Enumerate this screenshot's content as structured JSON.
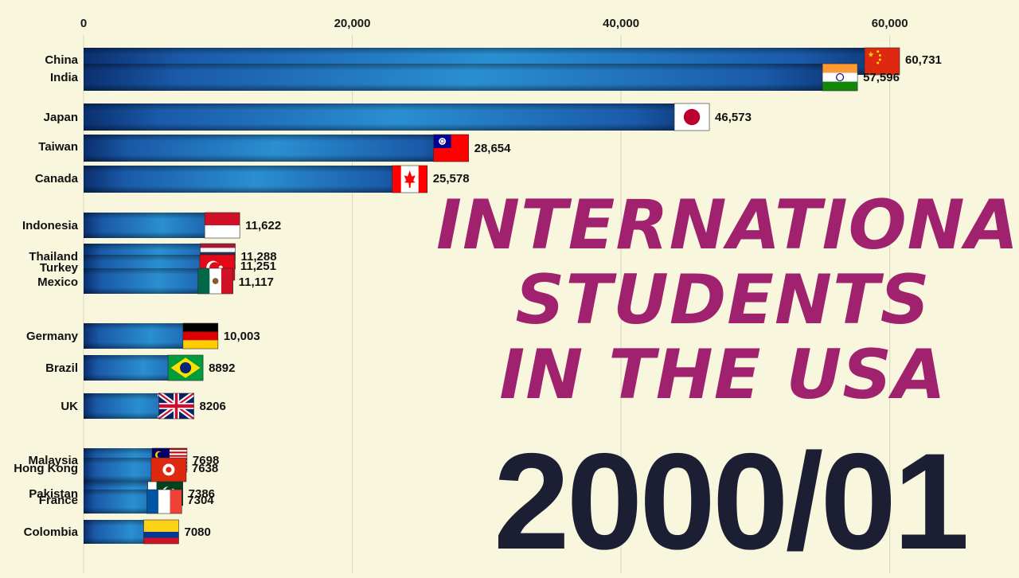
{
  "overlay": {
    "title": "INTERNATIONAL\nSTUDENTS\nIN THE USA",
    "period": "2000/01"
  },
  "colors": {
    "background": "#f8f6dc",
    "bar_dark": "#0b2f6e",
    "bar_mid": "#1a5aa8",
    "bar_light": "#2a8fd0",
    "title": "#a0226e",
    "period": "#1c1e33"
  },
  "chart_data": {
    "type": "bar",
    "orientation": "horizontal",
    "title": "",
    "xlabel": "",
    "ylabel": "",
    "xlim": [
      0,
      60731
    ],
    "x_ticks": [
      0,
      20000,
      40000,
      60000
    ],
    "x_tick_labels": [
      "0",
      "20,000",
      "40,000",
      "60,000"
    ],
    "grid": true,
    "categories": [
      "China",
      "India",
      "Japan",
      "Taiwan",
      "Canada",
      "Indonesia",
      "Thailand",
      "Turkey",
      "Mexico",
      "Germany",
      "Brazil",
      "UK",
      "Malaysia",
      "Hong Kong",
      "Pakistan",
      "France",
      "Colombia"
    ],
    "values": [
      60731,
      57596,
      46573,
      28654,
      25578,
      11622,
      11288,
      11251,
      11117,
      10003,
      8892,
      8206,
      7698,
      7638,
      7386,
      7304,
      7080
    ],
    "value_labels": [
      "60,731",
      "57,596",
      "46,573",
      "28,654",
      "25,578",
      "11,622",
      "11,288",
      "11,251",
      "11,117",
      "10,003",
      "8892",
      "8206",
      "7698",
      "7638",
      "7386",
      "7304",
      "7080"
    ],
    "flags": [
      "china-flag",
      "india-flag",
      "japan-flag",
      "taiwan-flag",
      "canada-flag",
      "indonesia-flag",
      "thailand-flag",
      "turkey-flag",
      "mexico-flag",
      "germany-flag",
      "brazil-flag",
      "uk-flag",
      "malaysia-flag",
      "hong-kong-flag",
      "pakistan-flag",
      "france-flag",
      "colombia-flag"
    ]
  }
}
